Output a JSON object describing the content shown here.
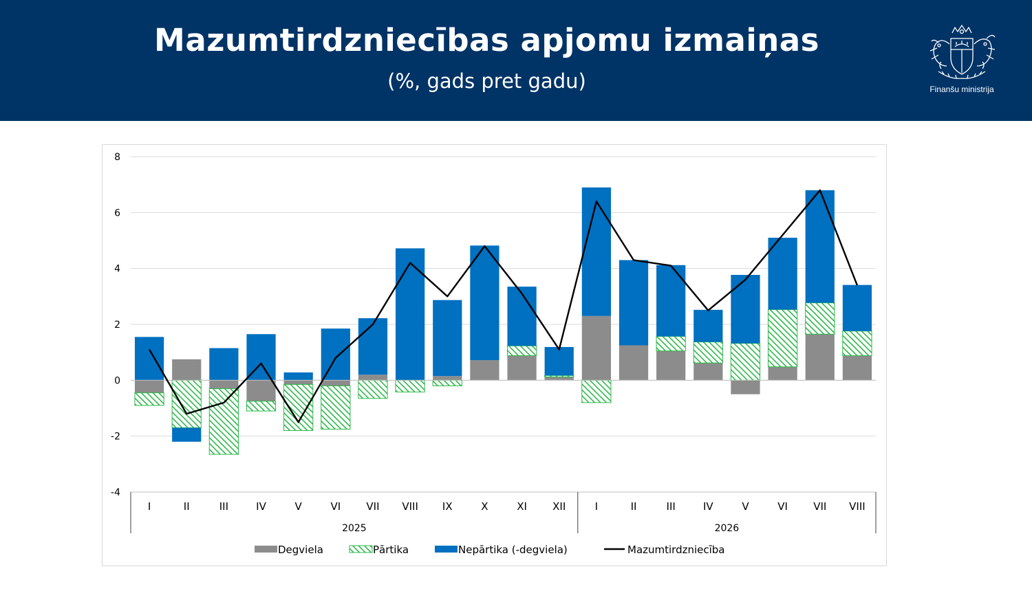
{
  "header": {
    "title": "Mazumtirdzniecības apjomu izmaiņas",
    "subtitle": "(%, gads pret gadu)",
    "ministry": "Finanšu ministrija",
    "logo_icon": "coat-of-arms-icon",
    "background_color": "#003366"
  },
  "chart_data": {
    "type": "bar",
    "stacked": true,
    "title": "",
    "xlabel": "",
    "ylabel": "",
    "ylim": [
      -4,
      8
    ],
    "yticks": [
      "8",
      "6",
      "4",
      "2",
      "0",
      "-2",
      "-4"
    ],
    "grid": true,
    "legend_position": "bottom",
    "categories": [
      "I",
      "II",
      "III",
      "IV",
      "V",
      "VI",
      "VII",
      "VIII",
      "IX",
      "X",
      "XI",
      "XII",
      "I",
      "II",
      "III",
      "IV",
      "V",
      "VI",
      "VII",
      "VIII"
    ],
    "groups": [
      {
        "label": "2025",
        "count": 12
      },
      {
        "label": "2026",
        "count": 8
      }
    ],
    "series": [
      {
        "name": "Degviela",
        "kind": "bar",
        "color": "#8c8c8c",
        "values": [
          -0.45,
          0.75,
          -0.3,
          -0.75,
          -0.15,
          -0.2,
          0.2,
          0.0,
          0.15,
          0.72,
          0.88,
          0.12,
          2.3,
          1.25,
          1.05,
          0.62,
          -0.5,
          0.48,
          1.65,
          0.88
        ]
      },
      {
        "name": "Pārtika",
        "kind": "bar",
        "color": "#2db84b",
        "pattern": "hatched",
        "values": [
          -0.45,
          -1.7,
          -2.35,
          -0.35,
          -1.65,
          -1.55,
          -0.65,
          -0.42,
          -0.2,
          0.0,
          0.35,
          0.05,
          -0.8,
          0.0,
          0.52,
          0.75,
          1.32,
          2.05,
          1.12,
          0.88
        ]
      },
      {
        "name": "Nepārtika (-degviela)",
        "kind": "bar",
        "color": "#0070c0",
        "values": [
          1.55,
          -0.5,
          1.15,
          1.65,
          0.28,
          1.85,
          2.02,
          4.72,
          2.72,
          4.1,
          2.12,
          1.02,
          4.6,
          3.05,
          2.55,
          1.15,
          2.45,
          2.57,
          4.03,
          1.65
        ]
      },
      {
        "name": "Mazumtirdzniecība",
        "kind": "line",
        "color": "#000000",
        "values": [
          1.1,
          -1.2,
          -0.8,
          0.6,
          -1.5,
          0.8,
          2.0,
          4.2,
          3.0,
          4.8,
          3.1,
          1.1,
          6.4,
          4.3,
          4.1,
          2.5,
          3.6,
          5.2,
          6.8,
          3.4
        ]
      }
    ]
  }
}
